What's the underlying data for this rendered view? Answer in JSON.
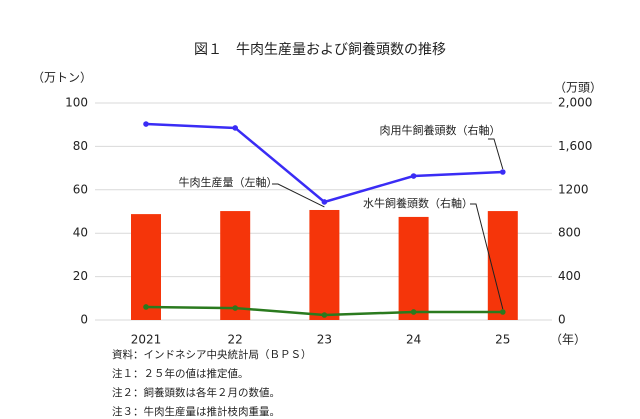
{
  "chart_data": {
    "type": "bar",
    "title": "図１　牛肉生産量および飼養頭数の推移",
    "y_label": "（万トン）",
    "y2_label": "（万頭）",
    "x_label": "（年）",
    "categories": [
      "2021",
      "22",
      "23",
      "24",
      "25"
    ],
    "ylim": [
      0,
      100
    ],
    "yticks": [
      0,
      20,
      40,
      60,
      80,
      100
    ],
    "y2lim": [
      0,
      2000
    ],
    "y2ticks": [
      0,
      400,
      800,
      1200,
      {
        "value": 1600,
        "label": "1,600"
      },
      {
        "value": 2000,
        "label": "2,000"
      }
    ],
    "grid": true,
    "series": [
      {
        "name": "牛肉生産量（左軸）",
        "type": "bar",
        "axis": "y",
        "color": "#f5350a",
        "values": [
          48.8,
          50.2,
          50.7,
          47.5,
          50.2
        ]
      },
      {
        "name": "肉用牛飼養頭数（右軸）",
        "type": "line",
        "axis": "y2",
        "color": "#3a2cf5",
        "values": [
          1806,
          1770,
          1088,
          1327,
          1364
        ]
      },
      {
        "name": "水牛飼養頭数（右軸）",
        "type": "line",
        "axis": "y2",
        "color": "#2a7a1e",
        "values": [
          120,
          110,
          46,
          74,
          74
        ]
      }
    ],
    "notes": [
      "資料：インドネシア中央統計局（ＢＰＳ）",
      "注１：２５年の値は推定値。",
      "注２：飼養頭数は各年２月の数値。",
      "注３：牛肉生産量は推計枝肉重量。"
    ]
  }
}
